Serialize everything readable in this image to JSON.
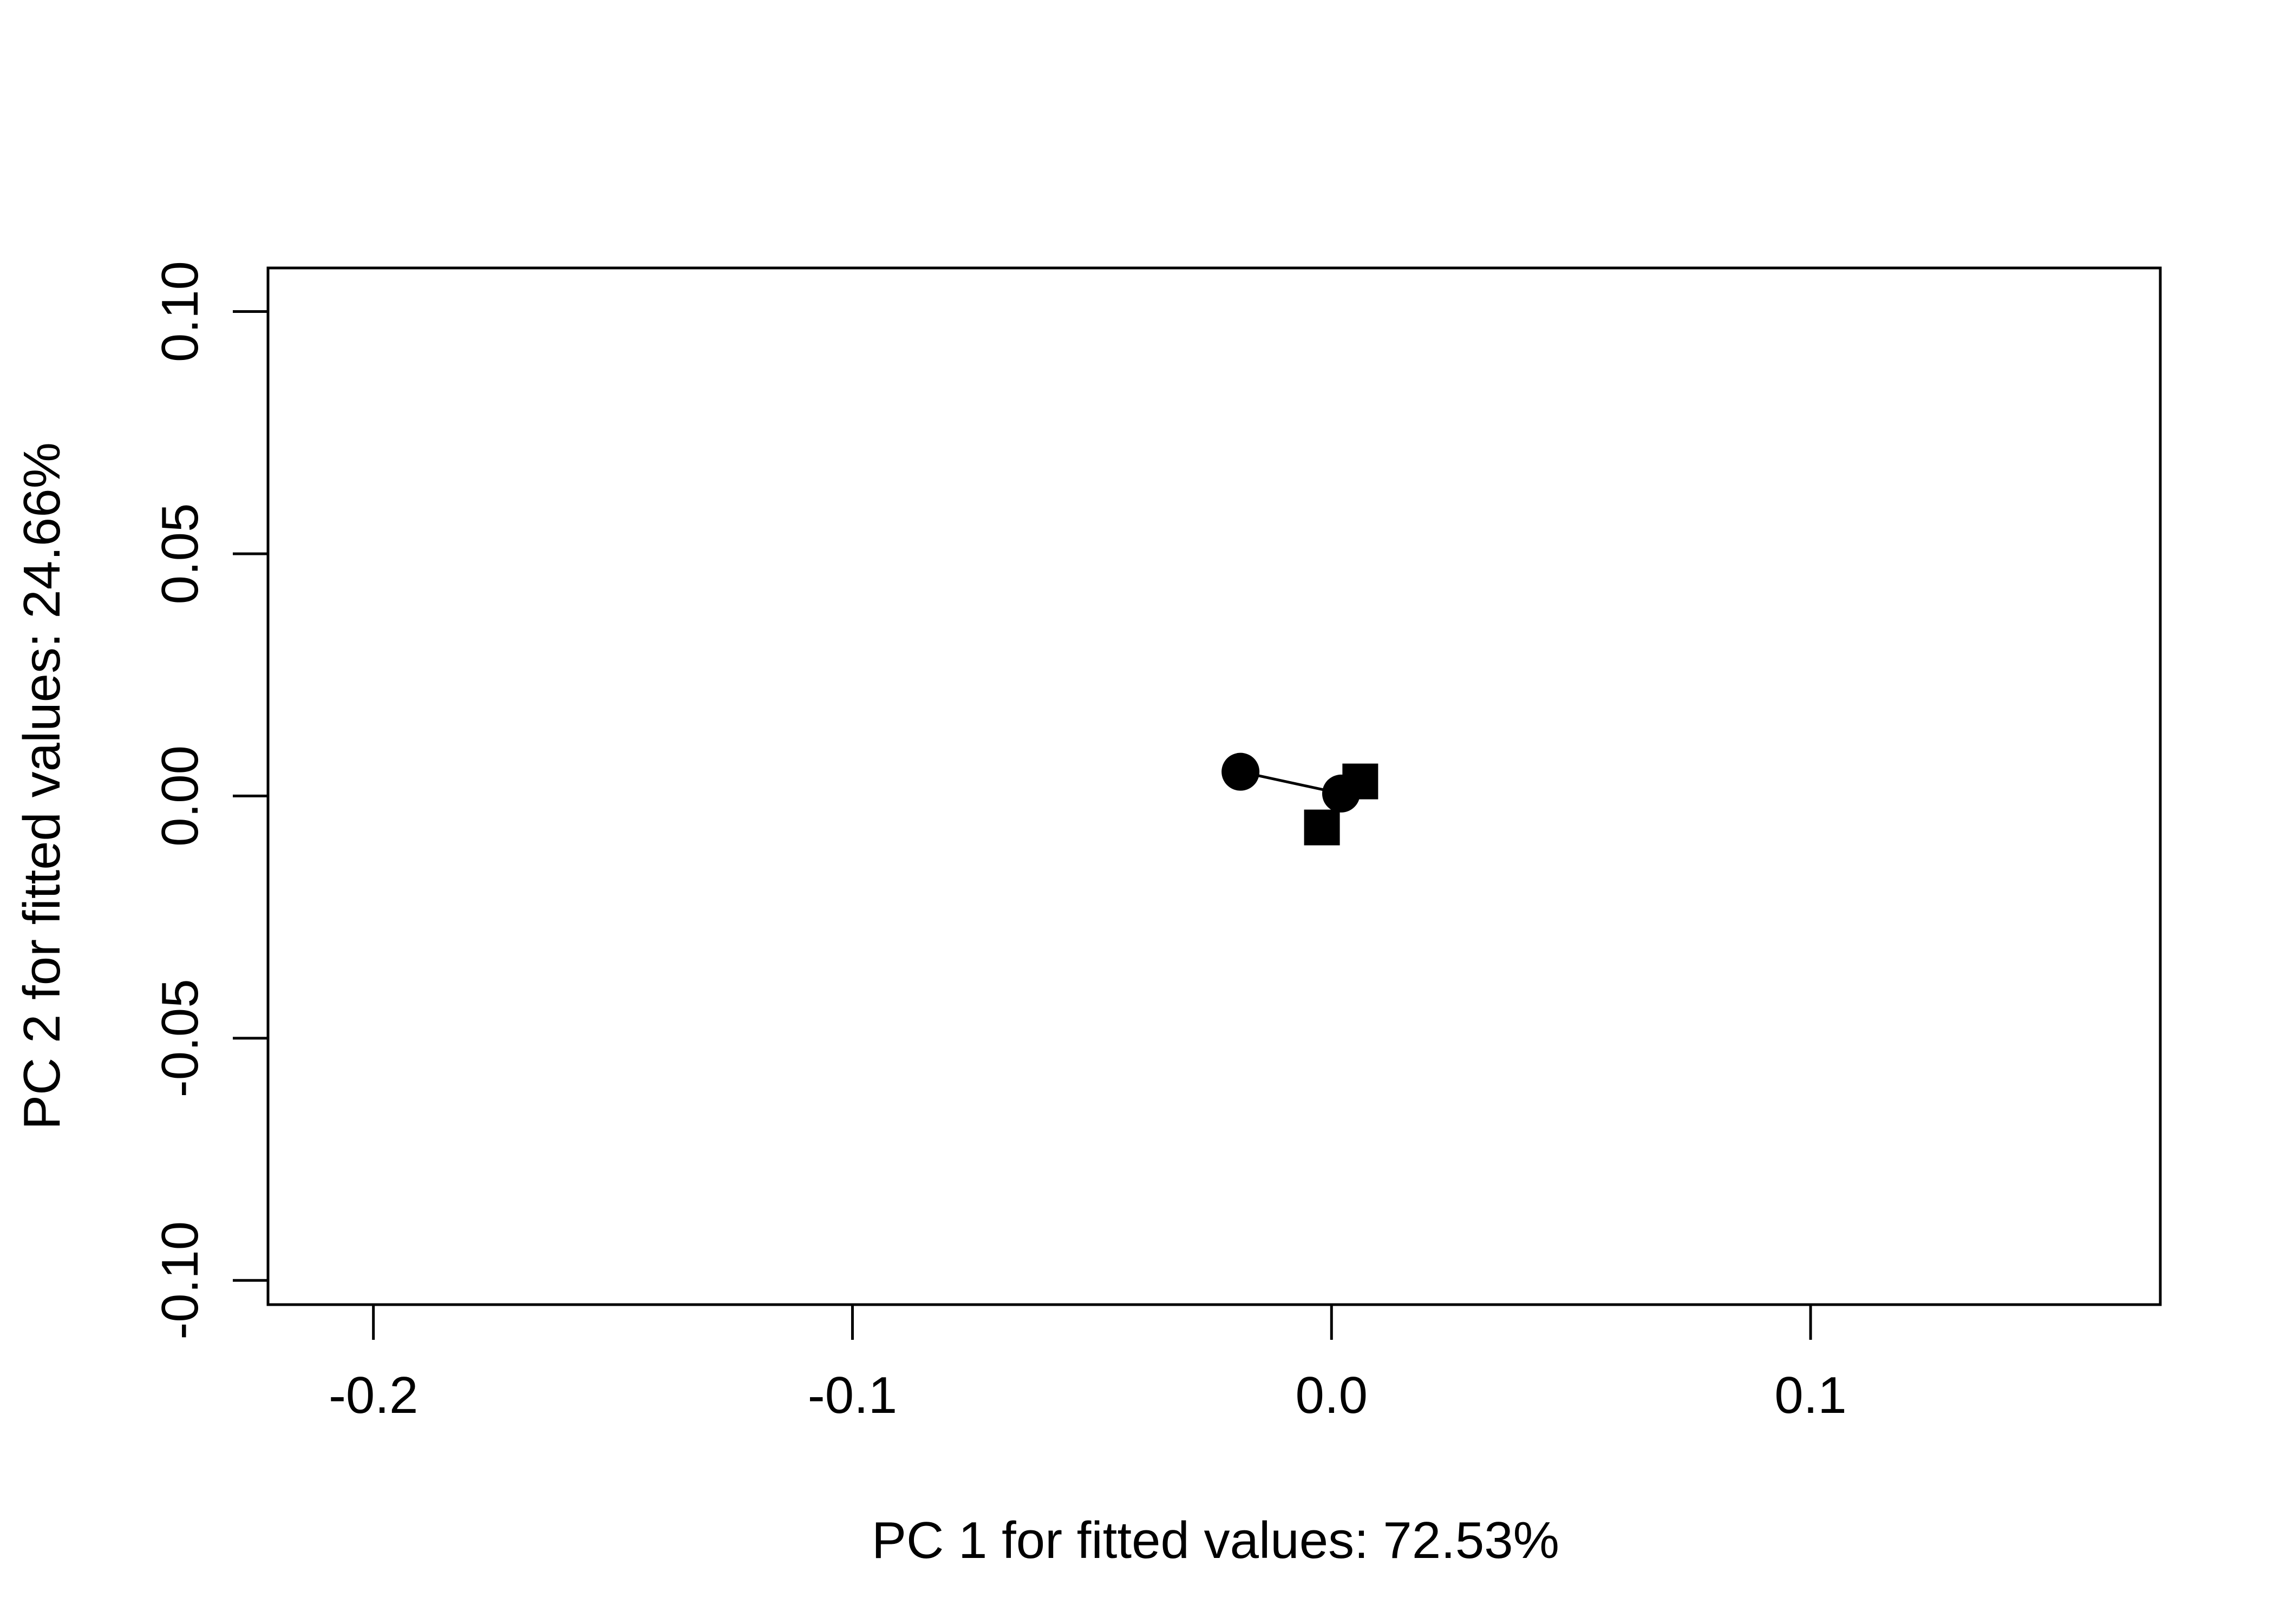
{
  "chart_data": {
    "type": "scatter",
    "title": "",
    "xlabel": "PC 1 for fitted values: 72.53%",
    "ylabel": "PC 2 for fitted values: 24.66%",
    "xlim": [
      -0.222,
      0.173
    ],
    "ylim": [
      -0.105,
      0.109
    ],
    "x_ticks": [
      {
        "value": -0.2,
        "label": "-0.2"
      },
      {
        "value": -0.1,
        "label": "-0.1"
      },
      {
        "value": 0.0,
        "label": "0.0"
      },
      {
        "value": 0.1,
        "label": "0.1"
      }
    ],
    "y_ticks": [
      {
        "value": -0.1,
        "label": "-0.10"
      },
      {
        "value": -0.05,
        "label": "-0.05"
      },
      {
        "value": 0.0,
        "label": "0.00"
      },
      {
        "value": 0.05,
        "label": "0.05"
      },
      {
        "value": 0.1,
        "label": "0.10"
      }
    ],
    "grid": false,
    "series": [
      {
        "marker": "circle",
        "color": "#000000",
        "connected": true,
        "points": [
          {
            "x": -0.019,
            "y": 0.005
          },
          {
            "x": 0.002,
            "y": 0.0005
          }
        ]
      },
      {
        "marker": "square",
        "color": "#000000",
        "connected": false,
        "points": [
          {
            "x": 0.006,
            "y": 0.003
          },
          {
            "x": -0.002,
            "y": -0.0065
          }
        ]
      }
    ]
  }
}
